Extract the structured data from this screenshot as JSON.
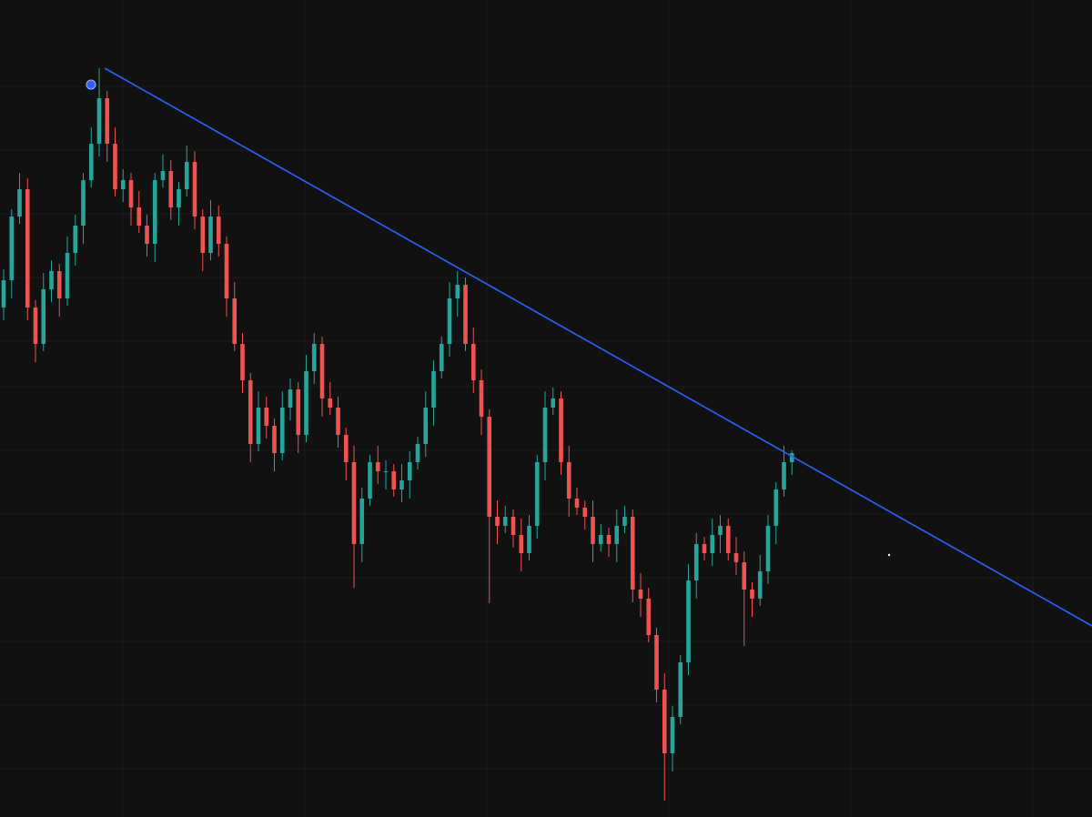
{
  "chart_data": {
    "type": "candlestick",
    "ylim": [
      0,
      898
    ],
    "up_color": "#26a69a",
    "down_color": "#ef5350",
    "open": [
      560,
      590,
      660,
      690,
      560,
      520,
      580,
      600,
      570,
      620,
      650,
      700,
      740,
      790,
      740,
      690,
      700,
      670,
      650,
      630,
      700,
      710,
      670,
      690,
      720,
      660,
      620,
      660,
      630,
      570,
      520,
      480,
      410,
      450,
      430,
      400,
      450,
      470,
      420,
      490,
      520,
      460,
      450,
      420,
      390,
      300,
      350,
      390,
      380,
      380,
      360,
      370,
      390,
      410,
      450,
      490,
      520,
      570,
      585,
      520,
      480,
      440,
      330,
      320,
      330,
      310,
      290,
      320,
      390,
      450,
      460,
      390,
      350,
      340,
      330,
      300,
      310,
      300,
      320,
      330,
      250,
      240,
      200,
      140,
      70,
      110,
      170,
      260,
      300,
      290,
      310,
      320,
      290,
      280,
      250,
      240,
      270,
      320,
      360,
      390
    ],
    "high": [
      602,
      668,
      708,
      702,
      568,
      598,
      612,
      608,
      638,
      662,
      708,
      758,
      823,
      798,
      758,
      712,
      708,
      688,
      662,
      708,
      728,
      722,
      698,
      738,
      732,
      668,
      678,
      672,
      638,
      588,
      532,
      488,
      468,
      462,
      438,
      468,
      482,
      478,
      508,
      532,
      528,
      478,
      462,
      428,
      408,
      362,
      398,
      408,
      392,
      388,
      388,
      402,
      418,
      468,
      502,
      528,
      588,
      600,
      593,
      538,
      492,
      448,
      348,
      342,
      338,
      328,
      332,
      398,
      468,
      472,
      468,
      408,
      362,
      348,
      348,
      322,
      318,
      338,
      342,
      338,
      268,
      252,
      208,
      158,
      122,
      178,
      278,
      312,
      308,
      328,
      332,
      328,
      308,
      292,
      258,
      288,
      332,
      368,
      408,
      403
    ],
    "low": [
      546,
      570,
      652,
      546,
      500,
      512,
      566,
      550,
      562,
      606,
      630,
      692,
      726,
      720,
      682,
      676,
      650,
      642,
      616,
      610,
      692,
      656,
      650,
      682,
      646,
      600,
      612,
      616,
      550,
      512,
      466,
      390,
      402,
      416,
      380,
      392,
      436,
      400,
      412,
      476,
      440,
      442,
      406,
      370,
      252,
      280,
      342,
      366,
      360,
      352,
      346,
      350,
      382,
      396,
      430,
      482,
      506,
      550,
      512,
      466,
      420,
      235,
      300,
      312,
      296,
      270,
      282,
      306,
      370,
      442,
      376,
      330,
      332,
      316,
      280,
      292,
      286,
      280,
      312,
      236,
      220,
      192,
      126,
      18,
      50,
      102,
      156,
      240,
      282,
      276,
      290,
      282,
      266,
      188,
      220,
      232,
      256,
      300,
      352,
      376
    ],
    "close": [
      590,
      660,
      690,
      560,
      520,
      580,
      600,
      570,
      620,
      650,
      700,
      740,
      790,
      740,
      690,
      700,
      670,
      650,
      630,
      700,
      710,
      670,
      690,
      720,
      660,
      620,
      660,
      630,
      570,
      520,
      480,
      410,
      450,
      430,
      400,
      450,
      470,
      420,
      490,
      520,
      460,
      450,
      420,
      390,
      300,
      350,
      390,
      380,
      380,
      360,
      370,
      390,
      410,
      450,
      490,
      520,
      570,
      585,
      520,
      480,
      440,
      330,
      320,
      330,
      310,
      290,
      320,
      390,
      450,
      460,
      390,
      350,
      340,
      330,
      300,
      310,
      300,
      320,
      330,
      250,
      240,
      200,
      140,
      70,
      110,
      170,
      260,
      300,
      290,
      310,
      320,
      290,
      280,
      250,
      240,
      270,
      320,
      360,
      390,
      400
    ],
    "trendline": {
      "x": [
        12.7,
        136.7
      ],
      "y": [
        823,
        210
      ],
      "color": "#2962ff"
    }
  }
}
